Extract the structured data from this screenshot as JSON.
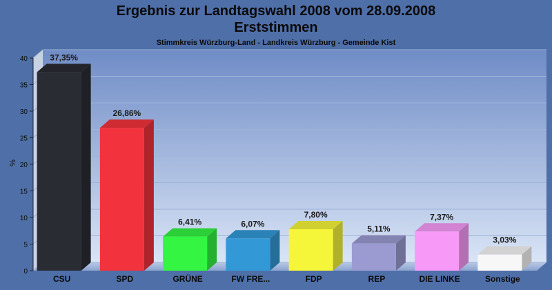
{
  "chart_data": {
    "type": "bar",
    "title": "Ergebnis zur Landtagswahl 2008 vom 28.09.2008",
    "title_line2": "Erststimmen",
    "subtitle": "Stimmkreis Würzburg-Land - Landkreis Würzburg - Gemeinde Kist",
    "ylabel": "%",
    "ylim": [
      0,
      40
    ],
    "yticks": [
      0,
      5,
      10,
      15,
      20,
      25,
      30,
      35,
      40
    ],
    "grid": true,
    "categories": [
      "CSU",
      "SPD",
      "GRÜNE",
      "FW FRE...",
      "FDP",
      "REP",
      "DIE LINKE",
      "Sonstige"
    ],
    "values": [
      37.35,
      26.86,
      6.41,
      6.07,
      7.8,
      5.11,
      7.37,
      3.03
    ],
    "value_labels": [
      "37,35%",
      "26,86%",
      "6,41%",
      "6,07%",
      "7,80%",
      "5,11%",
      "7,37%",
      "3,03%"
    ],
    "colors": [
      "#2a2c33",
      "#f2323c",
      "#33f542",
      "#3399d6",
      "#f5f53a",
      "#9b9bd2",
      "#f79af7",
      "#f7f7f7"
    ]
  }
}
